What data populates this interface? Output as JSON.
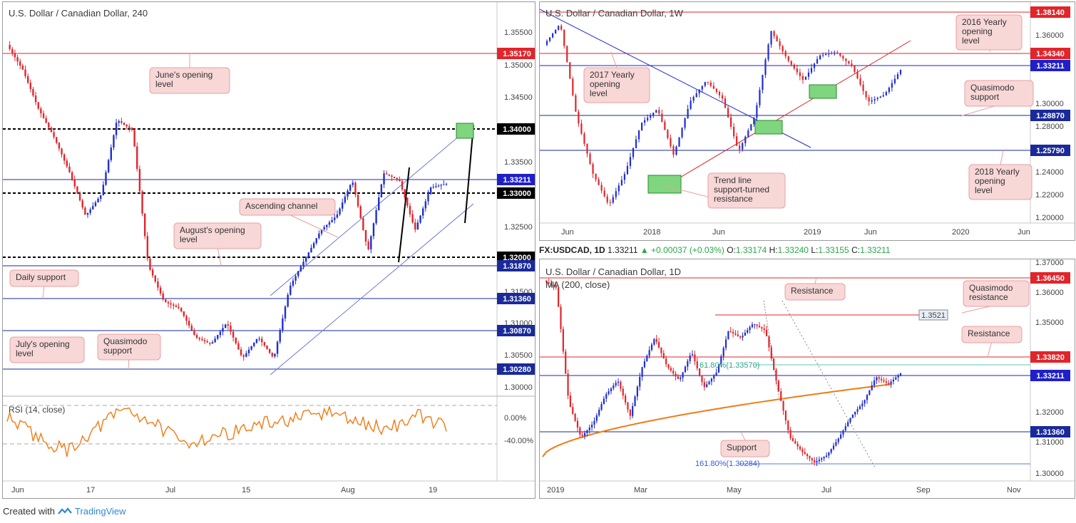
{
  "footer": {
    "created_with": "Created with",
    "brand": "TradingView"
  },
  "charts": {
    "h4": {
      "title": "U.S. Dollar / Canadian Dollar, 240",
      "rsi_label": "RSI (14, close)",
      "rsi_ticks": [
        "0.00%",
        "-40.00%"
      ],
      "x_ticks": [
        "Jun",
        "17",
        "Jul",
        "15",
        "Aug",
        "19"
      ],
      "y_ticks": [
        "1.35500",
        "1.35000",
        "1.34500",
        "1.33500",
        "1.32500",
        "1.31500",
        "1.31000",
        "1.30500",
        "1.30000"
      ],
      "levels": [
        {
          "value": "1.35170",
          "color": "#e0252b"
        },
        {
          "value": "1.34000",
          "color": "#000000"
        },
        {
          "value": "1.33211",
          "color": "#2020c8"
        },
        {
          "value": "1.33000",
          "color": "#000000"
        },
        {
          "value": "1.32000",
          "color": "#000000"
        },
        {
          "value": "1.31870",
          "color": "#1a2a9a"
        },
        {
          "value": "1.31360",
          "color": "#1a2a9a"
        },
        {
          "value": "1.30870",
          "color": "#1a2a9a"
        },
        {
          "value": "1.30280",
          "color": "#1a2a9a"
        }
      ],
      "annotations": [
        "June's opening level",
        "Ascending channel",
        "August's opening level",
        "Daily support",
        "July's opening level",
        "Quasimodo support"
      ]
    },
    "weekly": {
      "title": "U.S. Dollar / Canadian Dollar, 1W",
      "x_ticks": [
        "Jun",
        "2018",
        "Jun",
        "2019",
        "Jun",
        "2020",
        "Jun"
      ],
      "y_ticks": [
        "1.36000",
        "1.30000",
        "1.28000",
        "1.24000",
        "1.22000",
        "1.20000"
      ],
      "levels": [
        {
          "value": "1.38140",
          "color": "#e0252b"
        },
        {
          "value": "1.34340",
          "color": "#e0252b"
        },
        {
          "value": "1.33211",
          "color": "#2020c8"
        },
        {
          "value": "1.28870",
          "color": "#1a2a9a"
        },
        {
          "value": "1.25790",
          "color": "#1a2a9a"
        }
      ],
      "annotations": [
        "2016 Yearly opening level",
        "2017 Yearly opening level",
        "Quasimodo support",
        "Trend line support-turned resistance",
        "2018 Yearly opening level"
      ]
    },
    "daily": {
      "header": {
        "symbol": "FX:USDCAD, 1D",
        "last": "1.33211",
        "change": "+0.00037 (+0.03%)",
        "o_label": "O:",
        "o": "1.33174",
        "h_label": "H:",
        "h": "1.33240",
        "l_label": "L:",
        "l": "1.33155",
        "c_label": "C:",
        "c": "1.33211"
      },
      "title": "U.S. Dollar / Canadian Dollar, 1D",
      "ma_label": "MA (200, close)",
      "x_ticks": [
        "2019",
        "Mar",
        "May",
        "Jul",
        "Sep",
        "Nov"
      ],
      "y_ticks": [
        "1.37000",
        "1.36000",
        "1.35000",
        "1.32000",
        "1.31000",
        "1.30000"
      ],
      "levels": [
        {
          "value": "1.36450",
          "color": "#e0252b"
        },
        {
          "value": "1.33820",
          "color": "#e0252b"
        },
        {
          "value": "1.33211",
          "color": "#2020c8"
        },
        {
          "value": "1.31360",
          "color": "#1a2a9a"
        }
      ],
      "small_label": "1.3521",
      "fib1": "61.80%(1.33570)",
      "fib2": "161.80%(1.30284)",
      "annotations": [
        "Resistance",
        "Quasimodo resistance",
        "Resistance",
        "Support"
      ]
    }
  }
}
